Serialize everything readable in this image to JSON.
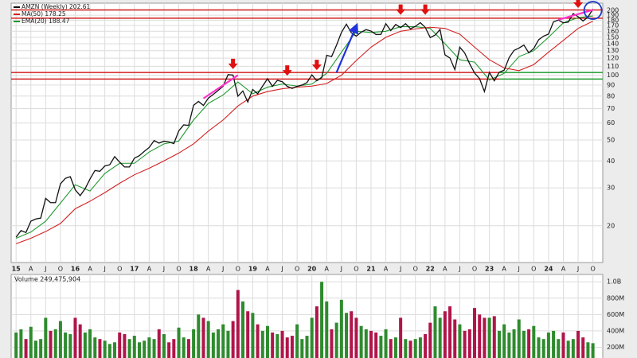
{
  "chart_data": [
    {
      "type": "line",
      "log_scale": true,
      "grid": true,
      "x": [
        "2015-01",
        "2015-02",
        "2015-03",
        "2015-04",
        "2015-05",
        "2015-06",
        "2015-07",
        "2015-08",
        "2015-09",
        "2015-10",
        "2015-11",
        "2015-12",
        "2016-01",
        "2016-02",
        "2016-03",
        "2016-04",
        "2016-05",
        "2016-06",
        "2016-07",
        "2016-08",
        "2016-09",
        "2016-10",
        "2016-11",
        "2016-12",
        "2017-01",
        "2017-02",
        "2017-03",
        "2017-04",
        "2017-05",
        "2017-06",
        "2017-07",
        "2017-08",
        "2017-09",
        "2017-10",
        "2017-11",
        "2017-12",
        "2018-01",
        "2018-02",
        "2018-03",
        "2018-04",
        "2018-05",
        "2018-06",
        "2018-07",
        "2018-08",
        "2018-09",
        "2018-10",
        "2018-11",
        "2018-12",
        "2019-01",
        "2019-02",
        "2019-03",
        "2019-04",
        "2019-05",
        "2019-06",
        "2019-07",
        "2019-08",
        "2019-09",
        "2019-10",
        "2019-11",
        "2019-12",
        "2020-01",
        "2020-02",
        "2020-03",
        "2020-04",
        "2020-05",
        "2020-06",
        "2020-07",
        "2020-08",
        "2020-09",
        "2020-10",
        "2020-11",
        "2020-12",
        "2021-01",
        "2021-02",
        "2021-03",
        "2021-04",
        "2021-05",
        "2021-06",
        "2021-07",
        "2021-08",
        "2021-09",
        "2021-10",
        "2021-11",
        "2021-12",
        "2022-01",
        "2022-02",
        "2022-03",
        "2022-04",
        "2022-05",
        "2022-06",
        "2022-07",
        "2022-08",
        "2022-09",
        "2022-10",
        "2022-11",
        "2022-12",
        "2023-01",
        "2023-02",
        "2023-03",
        "2023-04",
        "2023-05",
        "2023-06",
        "2023-07",
        "2023-08",
        "2023-09",
        "2023-10",
        "2023-11",
        "2023-12",
        "2024-01",
        "2024-02",
        "2024-03",
        "2024-04",
        "2024-05",
        "2024-06",
        "2024-07",
        "2024-08",
        "2024-09",
        "2024-10"
      ],
      "xlim": [
        "2014-12",
        "2024-12"
      ],
      "xticks": [
        {
          "value": "2015-01",
          "label": "15"
        },
        {
          "value": "2015-04",
          "label": "A"
        },
        {
          "value": "2015-07",
          "label": "J"
        },
        {
          "value": "2015-10",
          "label": "O"
        },
        {
          "value": "2016-01",
          "label": "16"
        },
        {
          "value": "2016-04",
          "label": "A"
        },
        {
          "value": "2016-07",
          "label": "J"
        },
        {
          "value": "2016-10",
          "label": "O"
        },
        {
          "value": "2017-01",
          "label": "17"
        },
        {
          "value": "2017-04",
          "label": "A"
        },
        {
          "value": "2017-07",
          "label": "J"
        },
        {
          "value": "2017-10",
          "label": "O"
        },
        {
          "value": "2018-01",
          "label": "18"
        },
        {
          "value": "2018-04",
          "label": "A"
        },
        {
          "value": "2018-07",
          "label": "J"
        },
        {
          "value": "2018-10",
          "label": "O"
        },
        {
          "value": "2019-01",
          "label": "19"
        },
        {
          "value": "2019-04",
          "label": "A"
        },
        {
          "value": "2019-07",
          "label": "J"
        },
        {
          "value": "2019-10",
          "label": "O"
        },
        {
          "value": "2020-01",
          "label": "20"
        },
        {
          "value": "2020-04",
          "label": "A"
        },
        {
          "value": "2020-07",
          "label": "J"
        },
        {
          "value": "2020-10",
          "label": "O"
        },
        {
          "value": "2021-01",
          "label": "21"
        },
        {
          "value": "2021-04",
          "label": "A"
        },
        {
          "value": "2021-07",
          "label": "J"
        },
        {
          "value": "2021-10",
          "label": "O"
        },
        {
          "value": "2022-01",
          "label": "22"
        },
        {
          "value": "2022-04",
          "label": "A"
        },
        {
          "value": "2022-07",
          "label": "J"
        },
        {
          "value": "2022-10",
          "label": "O"
        },
        {
          "value": "2023-01",
          "label": "23"
        },
        {
          "value": "2023-04",
          "label": "A"
        },
        {
          "value": "2023-07",
          "label": "J"
        },
        {
          "value": "2023-10",
          "label": "O"
        },
        {
          "value": "2024-01",
          "label": "24"
        },
        {
          "value": "2024-04",
          "label": "A"
        },
        {
          "value": "2024-07",
          "label": "J"
        },
        {
          "value": "2024-10",
          "label": "O"
        }
      ],
      "ylim": [
        13.5,
        216
      ],
      "yticks": [
        20,
        30,
        40,
        50,
        60,
        70,
        80,
        90,
        100,
        110,
        120,
        130,
        140,
        150,
        160,
        170,
        180,
        190,
        200
      ],
      "series": [
        {
          "name": "AMZN (Weekly) 202.61",
          "color": "#111111",
          "values": [
            17.7,
            19,
            18.6,
            21,
            21.5,
            21.7,
            26.8,
            25.6,
            25.6,
            31.3,
            33.2,
            33.8,
            29.4,
            27.6,
            29.7,
            33,
            36.1,
            35.8,
            37.9,
            38.4,
            41.9,
            39.5,
            37.5,
            37.5,
            41.2,
            42.3,
            44.3,
            46.2,
            49.7,
            48.4,
            49.4,
            49,
            48.1,
            55.2,
            58.8,
            58.5,
            72.5,
            75.6,
            72.4,
            78.3,
            81.5,
            85,
            88.9,
            100.6,
            100.2,
            79.9,
            84.5,
            75.1,
            85.9,
            82,
            89,
            96.3,
            88.8,
            94.7,
            93.3,
            88.8,
            86.8,
            88.8,
            90,
            92.4,
            100.4,
            94.2,
            97.5,
            123.7,
            122.1,
            137.9,
            158.2,
            172.5,
            157.4,
            151.8,
            158.4,
            162.8,
            160.3,
            154.6,
            154.7,
            173.4,
            161.2,
            172,
            166.4,
            173.5,
            164.3,
            168.6,
            175.4,
            166.7,
            149.6,
            153.6,
            163,
            124.3,
            120.2,
            106.2,
            134.9,
            126.8,
            113,
            102.4,
            96.5,
            84,
            103.1,
            94.2,
            103.3,
            105.5,
            120.6,
            130.4,
            133.7,
            138,
            127.1,
            133.1,
            146.1,
            151.9,
            155.2,
            176.8,
            180.4,
            175,
            176.4,
            193.3,
            186.9,
            178.5,
            186.3,
            202.61
          ]
        },
        {
          "name": "MA(50) 178.25",
          "color": "#d42020",
          "x": [
            "2015-01",
            "2015-04",
            "2015-07",
            "2015-10",
            "2016-01",
            "2016-04",
            "2016-07",
            "2016-10",
            "2017-01",
            "2017-04",
            "2017-07",
            "2017-10",
            "2018-01",
            "2018-04",
            "2018-07",
            "2018-10",
            "2019-01",
            "2019-04",
            "2019-07",
            "2019-10",
            "2020-01",
            "2020-04",
            "2020-07",
            "2020-10",
            "2021-01",
            "2021-04",
            "2021-07",
            "2021-10",
            "2022-01",
            "2022-04",
            "2022-07",
            "2022-10",
            "2023-01",
            "2023-04",
            "2023-07",
            "2023-10",
            "2024-01",
            "2024-04",
            "2024-07",
            "2024-10"
          ],
          "values": [
            16.5,
            17.5,
            18.8,
            20.5,
            24,
            26,
            28.5,
            31.5,
            34.5,
            37,
            40,
            43.5,
            48,
            55,
            62,
            72,
            80,
            84,
            86.5,
            88,
            89,
            91.5,
            100,
            117,
            135,
            150,
            160,
            164,
            167,
            165,
            155,
            135,
            118,
            108,
            105,
            112,
            128,
            145,
            165,
            178.25
          ]
        },
        {
          "name": "EMA(20) 188.47",
          "color": "#1f9a2e",
          "x": [
            "2015-01",
            "2015-04",
            "2015-07",
            "2015-10",
            "2016-01",
            "2016-04",
            "2016-07",
            "2016-10",
            "2017-01",
            "2017-04",
            "2017-07",
            "2017-10",
            "2018-01",
            "2018-04",
            "2018-07",
            "2018-10",
            "2019-01",
            "2019-04",
            "2019-07",
            "2019-10",
            "2020-01",
            "2020-04",
            "2020-07",
            "2020-10",
            "2021-01",
            "2021-04",
            "2021-07",
            "2021-10",
            "2022-01",
            "2022-04",
            "2022-07",
            "2022-10",
            "2023-01",
            "2023-04",
            "2023-07",
            "2023-10",
            "2024-01",
            "2024-04",
            "2024-07",
            "2024-10"
          ],
          "values": [
            17.5,
            18.7,
            21,
            25.5,
            31,
            29,
            35,
            39,
            39,
            44,
            48,
            49.5,
            62,
            74,
            81,
            93,
            82,
            88,
            91,
            89,
            91,
            102,
            128,
            160,
            158,
            160,
            168,
            168,
            165,
            140,
            118,
            115,
            95,
            102,
            122,
            130,
            150,
            175,
            185,
            188.47
          ]
        }
      ],
      "levels": [
        {
          "value": 201,
          "color": "#d42020",
          "from": "2014-12",
          "to": "2024-12"
        },
        {
          "value": 184,
          "color": "#d42020",
          "from": "2014-12",
          "to": "2024-12"
        },
        {
          "value": 103,
          "color": "#d42020",
          "from": "2014-12",
          "to": "2023-03"
        },
        {
          "value": 96,
          "color": "#d42020",
          "from": "2014-12",
          "to": "2023-03"
        },
        {
          "value": 103,
          "color": "#1f9a2e",
          "from": "2023-03",
          "to": "2024-12"
        },
        {
          "value": 96,
          "color": "#1f9a2e",
          "from": "2023-03",
          "to": "2024-12"
        }
      ],
      "arrows": {
        "color": "#e01010",
        "points": [
          {
            "x": "2018-09",
            "y": 104
          },
          {
            "x": "2019-08",
            "y": 97
          },
          {
            "x": "2020-02",
            "y": 103
          },
          {
            "x": "2021-07",
            "y": 186
          },
          {
            "x": "2021-12",
            "y": 186
          },
          {
            "x": "2024-07",
            "y": 200
          }
        ]
      },
      "trendlines": [
        {
          "from": [
            "2018-03",
            78
          ],
          "to": [
            "2018-10",
            100
          ],
          "color": "#ff33cc",
          "arrow": false
        },
        {
          "from": [
            "2020-06",
            103
          ],
          "to": [
            "2020-10",
            169
          ],
          "color": "#2233dd",
          "arrow": true
        },
        {
          "from": [
            "2024-03",
            181
          ],
          "to": [
            "2024-10",
            201
          ],
          "color": "#ff33cc",
          "arrow": false
        }
      ],
      "circle": {
        "x": "2024-10",
        "y": 200,
        "color": "#1a3ccc"
      }
    },
    {
      "type": "bar",
      "title": "Volume 249,475,904",
      "grid": true,
      "up_color": "#2e8b2e",
      "down_color": "#b0154a",
      "ylim": [
        0,
        1090000000
      ],
      "yticks": [
        {
          "value": 200000000,
          "label": "200M"
        },
        {
          "value": 400000000,
          "label": "400M"
        },
        {
          "value": 600000000,
          "label": "600M"
        },
        {
          "value": 800000000,
          "label": "800M"
        },
        {
          "value": 1000000000,
          "label": "1.0B"
        }
      ],
      "values": [
        380000000,
        420000000,
        300000000,
        450000000,
        280000000,
        300000000,
        560000000,
        400000000,
        420000000,
        520000000,
        380000000,
        360000000,
        560000000,
        480000000,
        380000000,
        420000000,
        320000000,
        300000000,
        280000000,
        240000000,
        260000000,
        380000000,
        360000000,
        300000000,
        340000000,
        260000000,
        280000000,
        320000000,
        300000000,
        420000000,
        360000000,
        260000000,
        300000000,
        440000000,
        320000000,
        300000000,
        420000000,
        600000000,
        560000000,
        520000000,
        380000000,
        420000000,
        480000000,
        400000000,
        520000000,
        900000000,
        760000000,
        640000000,
        620000000,
        480000000,
        400000000,
        460000000,
        380000000,
        360000000,
        400000000,
        320000000,
        340000000,
        480000000,
        300000000,
        340000000,
        560000000,
        700000000,
        1000000000,
        760000000,
        420000000,
        500000000,
        780000000,
        620000000,
        640000000,
        560000000,
        460000000,
        420000000,
        400000000,
        380000000,
        340000000,
        420000000,
        300000000,
        320000000,
        560000000,
        300000000,
        280000000,
        300000000,
        320000000,
        360000000,
        500000000,
        700000000,
        560000000,
        640000000,
        700000000,
        540000000,
        480000000,
        400000000,
        420000000,
        680000000,
        600000000,
        560000000,
        560000000,
        580000000,
        400000000,
        480000000,
        380000000,
        420000000,
        540000000,
        400000000,
        420000000,
        460000000,
        320000000,
        300000000,
        380000000,
        400000000,
        300000000,
        380000000,
        280000000,
        300000000,
        400000000,
        320000000,
        260000000,
        249475904
      ]
    }
  ]
}
